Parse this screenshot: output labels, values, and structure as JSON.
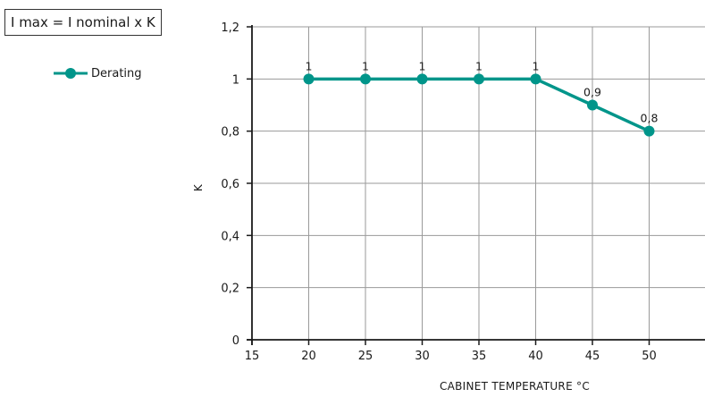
{
  "formula": "I max = I nominal x K",
  "colors": {
    "series": "#00958a",
    "grid": "#9a9a9a",
    "axis": "#1a1a1a"
  },
  "chart_data": {
    "type": "line",
    "title": "",
    "xlabel": "CABINET TEMPERATURE °C",
    "ylabel": "K",
    "xlim": [
      15,
      55
    ],
    "ylim": [
      0,
      1.2
    ],
    "x_ticks": [
      15,
      20,
      25,
      30,
      35,
      40,
      45,
      50
    ],
    "x_tick_labels": [
      "15",
      "20",
      "25",
      "30",
      "35",
      "40",
      "45",
      "50"
    ],
    "y_ticks": [
      0,
      0.2,
      0.4,
      0.6,
      0.8,
      1.0,
      1.2
    ],
    "y_tick_labels": [
      "0",
      "0,2",
      "0,4",
      "0,6",
      "0,8",
      "1",
      "1,2"
    ],
    "grid": true,
    "legend": "top-left",
    "series": [
      {
        "name": "Derating",
        "x": [
          20,
          25,
          30,
          35,
          40,
          45,
          50
        ],
        "y": [
          1,
          1,
          1,
          1,
          1,
          0.9,
          0.8
        ],
        "labels": [
          "1",
          "1",
          "1",
          "1",
          "1",
          "0,9",
          "0,8"
        ]
      }
    ]
  }
}
